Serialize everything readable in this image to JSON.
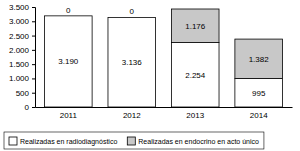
{
  "chart_data": {
    "type": "bar",
    "stacked": true,
    "data_labels": true,
    "legend": "bottom",
    "categories": [
      "2011",
      "2012",
      "2013",
      "2014"
    ],
    "series": [
      {
        "name": "Realizadas en radiodiagnóstico",
        "color": "#ffffff",
        "values": [
          3190,
          3136,
          2254,
          995
        ],
        "value_labels": [
          "3.190",
          "3.136",
          "2.254",
          "995"
        ]
      },
      {
        "name": "Realizadas en endocrino en acto único",
        "color": "#c8c8c8",
        "values": [
          0,
          0,
          1176,
          1382
        ],
        "value_labels": [
          "0",
          "0",
          "1.176",
          "1.382"
        ]
      }
    ],
    "ylim": [
      0,
      3500
    ],
    "yticks": [
      0,
      500,
      {
        "value": 1000,
        "label": "1.000"
      },
      {
        "value": 1500,
        "label": "1.500"
      },
      {
        "value": 2000,
        "label": "2.000"
      },
      {
        "value": 2500,
        "label": "2.500"
      },
      {
        "value": 3000,
        "label": "3.000"
      },
      {
        "value": 3500,
        "label": "3.500"
      }
    ]
  }
}
